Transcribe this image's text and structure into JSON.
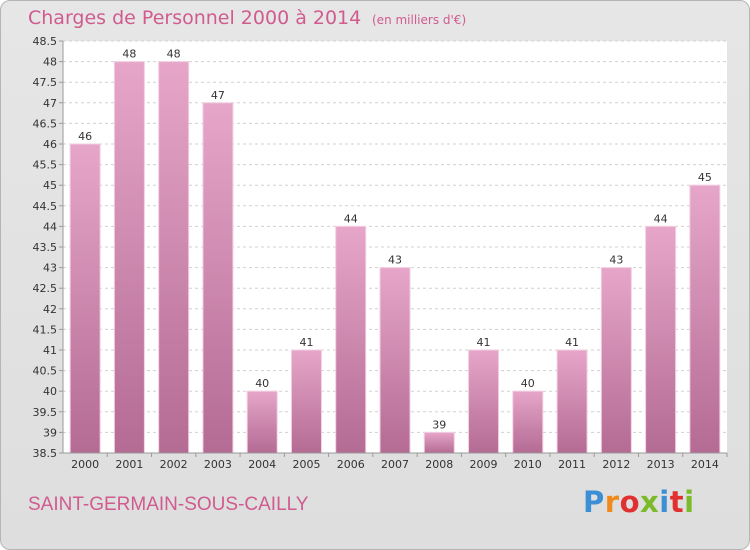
{
  "chart_data": {
    "type": "bar",
    "title": "Charges de Personnel 2000 à 2014",
    "subtitle": "(en milliers d'€)",
    "categories": [
      "2000",
      "2001",
      "2002",
      "2003",
      "2004",
      "2005",
      "2006",
      "2007",
      "2008",
      "2009",
      "2010",
      "2011",
      "2012",
      "2013",
      "2014"
    ],
    "values": [
      46,
      48,
      48,
      47,
      40,
      41,
      44,
      43,
      39,
      41,
      40,
      41,
      43,
      44,
      45
    ],
    "ylim": [
      38.5,
      48.5
    ],
    "yticks": [
      "38.5",
      "39",
      "39.5",
      "40",
      "40.5",
      "41",
      "41.5",
      "42",
      "42.5",
      "43",
      "43.5",
      "44",
      "44.5",
      "45",
      "45.5",
      "46",
      "46.5",
      "47",
      "47.5",
      "48",
      "48.5"
    ],
    "grid": true,
    "bar_color": "#d98bb5",
    "title_color": "#d05b8f"
  },
  "footer": {
    "commune": "SAINT-GERMAIN-SOUS-CAILLY",
    "logo": "Proxiti",
    "logo_colors": [
      "#3b8fd4",
      "#f08a1c",
      "#e03030",
      "#7bbb2a",
      "#3b8fd4",
      "#e03030",
      "#7bbb2a"
    ]
  }
}
